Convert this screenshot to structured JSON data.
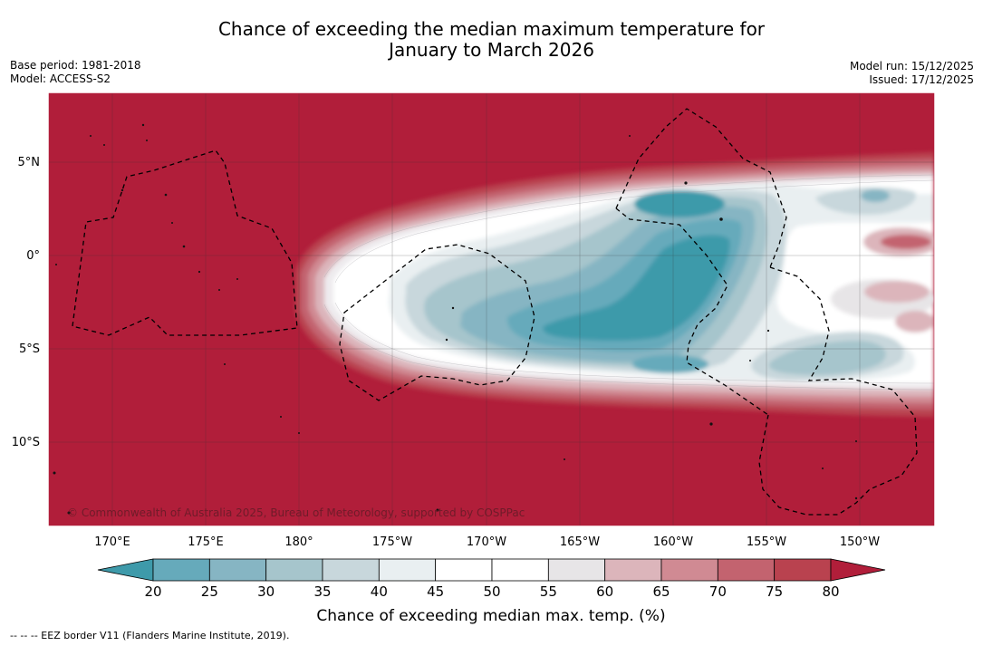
{
  "title": {
    "line1": "Chance of exceeding the median maximum temperature for",
    "line2": "January to March 2026"
  },
  "meta": {
    "base_period": "Base period: 1981-2018",
    "model": "Model: ACCESS-S2",
    "model_run": "Model run: 15/12/2025",
    "issued": "Issued: 17/12/2025"
  },
  "map": {
    "lat_labels": [
      "5°N",
      "0°",
      "5°S",
      "10°S"
    ],
    "lon_labels": [
      "170°E",
      "175°E",
      "180°",
      "175°W",
      "170°W",
      "165°W",
      "160°W",
      "155°W",
      "150°W"
    ],
    "copyright": "© Commonwealth of Australia 2025, Bureau of Meteorology, supported by COSPPac",
    "background_color": "#b11e3a"
  },
  "colorbar": {
    "ticks": [
      "20",
      "25",
      "30",
      "35",
      "40",
      "45",
      "50",
      "55",
      "60",
      "65",
      "70",
      "75",
      "80"
    ],
    "colors": [
      "#3e9aaa",
      "#66aabb",
      "#86b5c3",
      "#a6c5cc",
      "#c8d7dc",
      "#e9eff1",
      "#ffffff",
      "#ffffff",
      "#e7e5e7",
      "#dcb5bb",
      "#d08a93",
      "#c3636f",
      "#b9424f",
      "#b11e3a"
    ],
    "title": "Chance of exceeding median max. temp. (%)"
  },
  "footer": {
    "legend_text": "--  --  -- EEZ border V11 (Flanders Marine Institute, 2019)."
  }
}
